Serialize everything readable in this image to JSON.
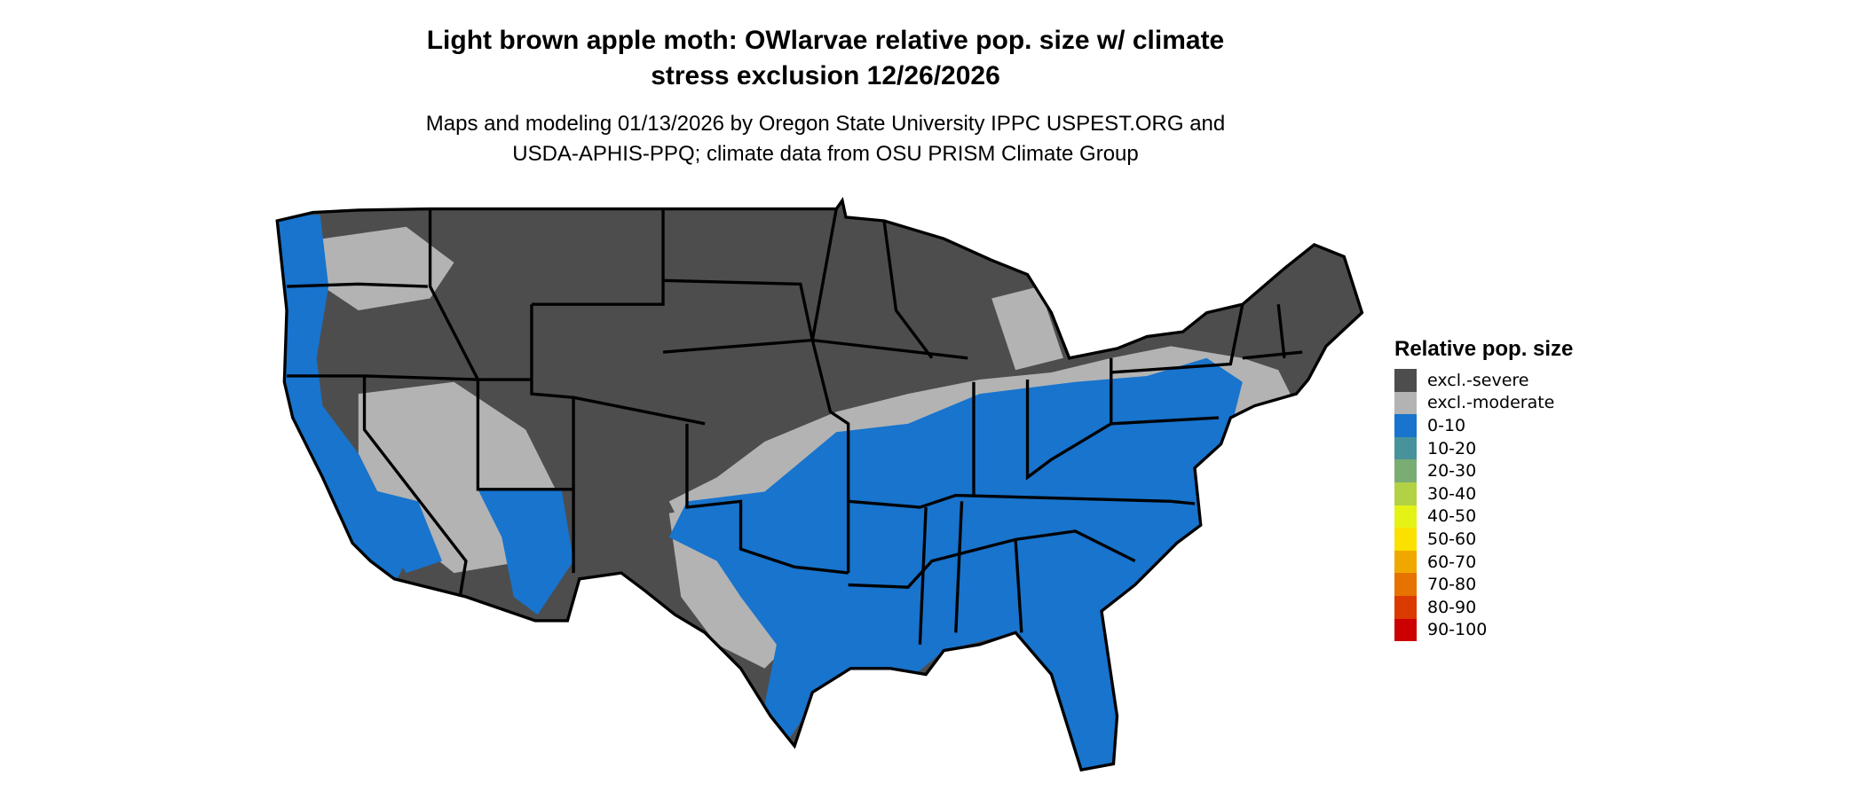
{
  "title": {
    "line1": "Light brown apple moth: OWlarvae relative pop. size w/ climate",
    "line2": "stress exclusion 12/26/2026"
  },
  "subtitle": {
    "line1": "Maps and modeling 01/13/2026 by Oregon State University IPPC USPEST.ORG and",
    "line2": "USDA-APHIS-PPQ; climate data from OSU PRISM Climate Group"
  },
  "map": {
    "region": "Contiguous United States",
    "state_border_color": "#000000"
  },
  "legend": {
    "title": "Relative pop. size",
    "position": "right",
    "items": [
      {
        "label": "excl.-severe",
        "color": "#4d4d4d"
      },
      {
        "label": "excl.-moderate",
        "color": "#b3b3b3"
      },
      {
        "label": "0-10",
        "color": "#1874cd"
      },
      {
        "label": "10-20",
        "color": "#48929b"
      },
      {
        "label": "20-30",
        "color": "#7aad74"
      },
      {
        "label": "30-40",
        "color": "#b3d145"
      },
      {
        "label": "40-50",
        "color": "#e5f215"
      },
      {
        "label": "50-60",
        "color": "#fae100"
      },
      {
        "label": "60-70",
        "color": "#f0a800"
      },
      {
        "label": "70-80",
        "color": "#e67300"
      },
      {
        "label": "80-90",
        "color": "#db3a00"
      },
      {
        "label": "90-100",
        "color": "#cc0000"
      }
    ]
  }
}
